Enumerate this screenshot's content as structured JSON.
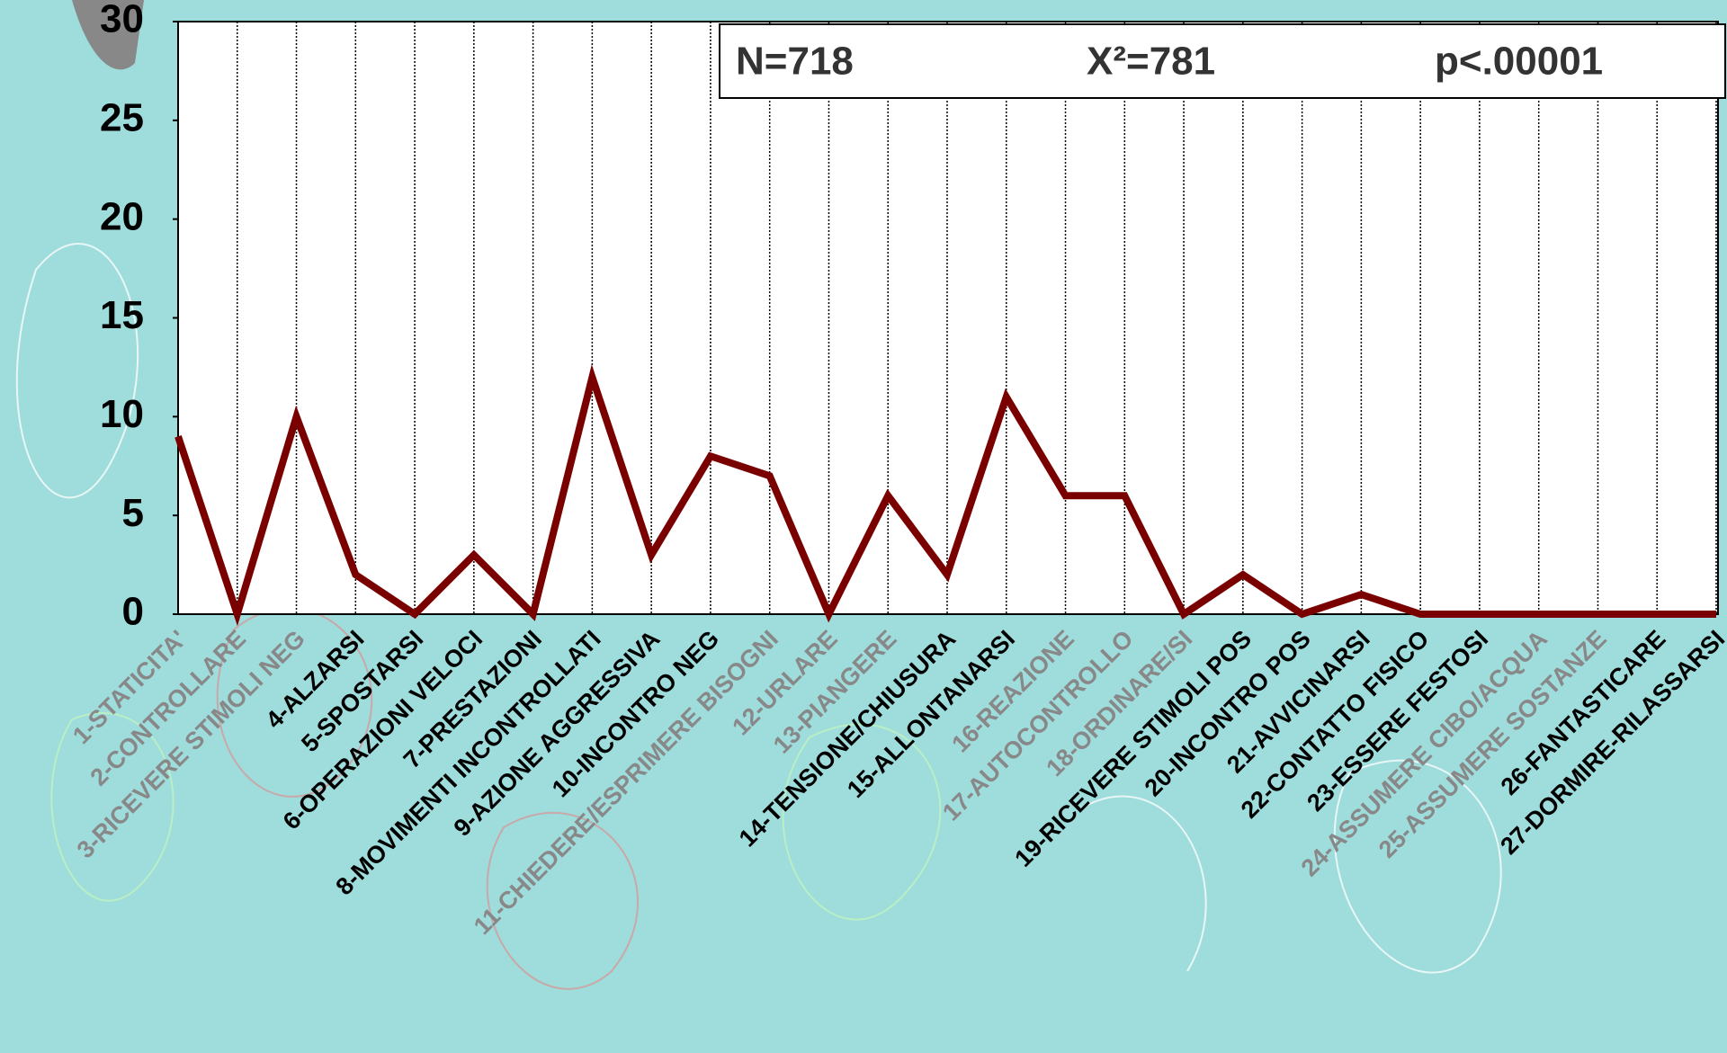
{
  "chart_data": {
    "type": "line",
    "categories": [
      "1-STATICITA'",
      "2-CONTROLLARE",
      "3-RICEVERE STIMOLI NEG",
      "4-ALZARSI",
      "5-SPOSTARSI",
      "6-OPERAZIONI VELOCI",
      "7-PRESTAZIONI",
      "8-MOVIMENTI INCONTROLLATI",
      "9-AZIONE AGGRESSIVA",
      "10-INCONTRO NEG",
      "11-CHIEDERE/ESPRIMERE BISOGNI",
      "12-URLARE",
      "13-PIANGERE",
      "14-TENSIONE/CHIUSURA",
      "15-ALLONTANARSI",
      "16-REAZIONE",
      "17-AUTOCONTROLLO",
      "18-ORDINARE/SI",
      "19-RICEVERE STIMOLI POS",
      "20-INCONTRO POS",
      "21-AVVICINARSI",
      "22-CONTATTO FISICO",
      "23-ESSERE FESTOSI",
      "24-ASSUMERE CIBO/ACQUA",
      "25-ASSUMERE SOSTANZE",
      "26-FANTASTICARE",
      "27-DORMIRE-RILASSARSI"
    ],
    "category_label_colors": [
      "#888888",
      "#888888",
      "#888888",
      "#000000",
      "#000000",
      "#000000",
      "#000000",
      "#000000",
      "#000000",
      "#000000",
      "#888888",
      "#888888",
      "#888888",
      "#000000",
      "#000000",
      "#888888",
      "#888888",
      "#888888",
      "#000000",
      "#000000",
      "#000000",
      "#000000",
      "#000000",
      "#888888",
      "#888888",
      "#000000",
      "#000000"
    ],
    "values": [
      9,
      0,
      10,
      2,
      0,
      3,
      0,
      12,
      3,
      8,
      7,
      0,
      6,
      2,
      11,
      6,
      6,
      0,
      2,
      0,
      1,
      0,
      0,
      0,
      0,
      0,
      0
    ],
    "color": "#7a0000",
    "ylim": [
      0,
      30
    ],
    "yticks": [
      0,
      5,
      10,
      15,
      20,
      25,
      30
    ],
    "annotations": [
      "N=718",
      "X²=781",
      "p<.00001"
    ]
  }
}
